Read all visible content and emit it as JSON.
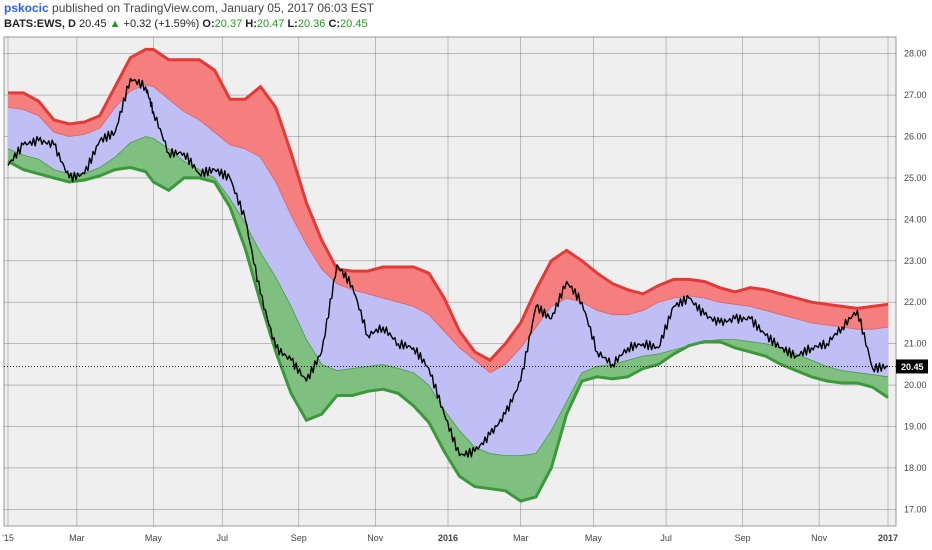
{
  "header": {
    "author": "pskocic",
    "published_text": "published on TradingView.com, January 05, 2017 06:03 EST",
    "symbol": "BATS:EWS, D",
    "last": "20.45",
    "up_arrow": "▲",
    "change": "+0.32 (+1.59%)",
    "o_label": "O:",
    "o_value": "20.37",
    "h_label": "H:",
    "h_value": "20.47",
    "l_label": "L:",
    "l_value": "20.36",
    "c_label": "C:",
    "c_value": "20.45"
  },
  "colors": {
    "background": "#efefef",
    "grid": "#555555",
    "upper_band": "#f57f7f",
    "upper_edge": "#e53935",
    "middle_band": "#bfbff5",
    "lower_band": "#7fbf7f",
    "lower_edge": "#3a9a3a",
    "price": "#000000",
    "price_tag": "#000000"
  },
  "chart_data": {
    "type": "line",
    "title": "",
    "xlabel": "",
    "ylabel": "",
    "ylim": [
      16.6,
      28.4
    ],
    "y_ticks": [
      "17.00",
      "18.00",
      "19.00",
      "20.00",
      "21.00",
      "22.00",
      "23.00",
      "24.00",
      "25.00",
      "26.00",
      "27.00",
      "28.00"
    ],
    "x_ticks": [
      "'15",
      "Mar",
      "May",
      "Jul",
      "Sep",
      "Nov",
      "2016",
      "Mar",
      "May",
      "Jul",
      "Sep",
      "Nov",
      "2017"
    ],
    "x_tick_pos": [
      0,
      1.8,
      3.8,
      5.6,
      7.6,
      9.6,
      11.5,
      13.4,
      15.3,
      17.2,
      19.2,
      21.2,
      23.0
    ],
    "last_price_label": "20.45",
    "x_months": [
      0,
      0.4,
      0.8,
      1.2,
      1.6,
      2.0,
      2.4,
      2.8,
      3.2,
      3.6,
      3.8,
      4.2,
      4.6,
      5.0,
      5.4,
      5.8,
      6.2,
      6.6,
      7.0,
      7.4,
      7.8,
      8.2,
      8.6,
      9.0,
      9.4,
      9.8,
      10.2,
      10.6,
      11.0,
      11.4,
      11.8,
      12.2,
      12.6,
      13.0,
      13.4,
      13.8,
      14.2,
      14.6,
      15.0,
      15.4,
      15.8,
      16.2,
      16.6,
      17.0,
      17.4,
      17.8,
      18.2,
      18.6,
      19.0,
      19.4,
      19.8,
      20.2,
      20.6,
      21.0,
      21.4,
      21.8,
      22.2,
      22.6,
      23.0
    ],
    "series": [
      {
        "name": "",
        "role": "upper_outer",
        "values": [
          27.05,
          27.05,
          26.85,
          26.4,
          26.3,
          26.35,
          26.5,
          27.2,
          27.9,
          28.1,
          28.1,
          27.85,
          27.85,
          27.85,
          27.6,
          26.9,
          26.9,
          27.2,
          26.7,
          25.6,
          24.4,
          23.5,
          22.8,
          22.75,
          22.75,
          22.85,
          22.85,
          22.85,
          22.7,
          22.1,
          21.3,
          20.8,
          20.6,
          21.0,
          21.5,
          22.3,
          23.0,
          23.25,
          23.0,
          22.7,
          22.45,
          22.3,
          22.2,
          22.4,
          22.55,
          22.55,
          22.5,
          22.35,
          22.25,
          22.35,
          22.3,
          22.2,
          22.1,
          22.0,
          21.95,
          21.9,
          21.85,
          21.9,
          21.95
        ]
      },
      {
        "name": "",
        "role": "upper_inner",
        "values": [
          26.7,
          26.65,
          26.5,
          26.1,
          26.0,
          26.05,
          26.2,
          26.7,
          27.1,
          27.25,
          27.2,
          26.9,
          26.6,
          26.4,
          26.1,
          25.8,
          25.7,
          25.5,
          24.9,
          24.1,
          23.4,
          22.8,
          22.45,
          22.3,
          22.2,
          22.1,
          22.0,
          21.9,
          21.7,
          21.3,
          20.9,
          20.6,
          20.3,
          20.5,
          20.9,
          21.4,
          21.9,
          22.1,
          22.0,
          21.8,
          21.7,
          21.7,
          21.8,
          22.0,
          22.1,
          22.15,
          22.1,
          22.0,
          21.95,
          21.9,
          21.8,
          21.7,
          21.6,
          21.5,
          21.45,
          21.4,
          21.35,
          21.35,
          21.4
        ]
      },
      {
        "name": "",
        "role": "lower_inner",
        "values": [
          25.7,
          25.55,
          25.45,
          25.2,
          25.1,
          25.1,
          25.25,
          25.5,
          25.85,
          26.0,
          25.95,
          25.7,
          25.4,
          25.2,
          25.0,
          24.5,
          23.9,
          23.2,
          22.6,
          21.9,
          21.1,
          20.5,
          20.35,
          20.4,
          20.45,
          20.5,
          20.4,
          20.3,
          20.0,
          19.4,
          18.9,
          18.5,
          18.35,
          18.3,
          18.3,
          18.35,
          18.9,
          19.6,
          20.3,
          20.45,
          20.5,
          20.6,
          20.7,
          20.75,
          20.85,
          20.95,
          21.05,
          21.1,
          21.1,
          21.05,
          21.0,
          20.9,
          20.75,
          20.6,
          20.45,
          20.35,
          20.3,
          20.25,
          20.2
        ]
      },
      {
        "name": "",
        "role": "lower_outer",
        "values": [
          25.4,
          25.2,
          25.1,
          25.0,
          24.9,
          24.95,
          25.05,
          25.2,
          25.25,
          25.15,
          24.9,
          24.7,
          25.0,
          25.0,
          24.9,
          24.3,
          23.3,
          22.0,
          20.8,
          19.8,
          19.15,
          19.3,
          19.75,
          19.75,
          19.85,
          19.9,
          19.8,
          19.5,
          19.1,
          18.4,
          17.8,
          17.55,
          17.5,
          17.45,
          17.2,
          17.3,
          18.0,
          19.3,
          20.1,
          20.2,
          20.15,
          20.2,
          20.4,
          20.5,
          20.75,
          20.95,
          21.05,
          21.05,
          20.9,
          20.8,
          20.7,
          20.5,
          20.35,
          20.2,
          20.1,
          20.05,
          20.05,
          19.95,
          19.7
        ]
      },
      {
        "name": "",
        "role": "price",
        "values": [
          25.3,
          25.8,
          25.9,
          25.8,
          25.0,
          25.1,
          25.9,
          26.1,
          27.4,
          27.2,
          26.6,
          25.6,
          25.6,
          25.1,
          25.2,
          25.0,
          24.0,
          22.2,
          20.9,
          20.6,
          20.1,
          20.8,
          22.9,
          22.4,
          21.2,
          21.4,
          21.0,
          20.9,
          20.4,
          19.3,
          18.3,
          18.4,
          18.8,
          19.3,
          20.1,
          21.9,
          21.6,
          22.5,
          22.0,
          20.8,
          20.5,
          20.9,
          21.0,
          20.9,
          21.9,
          22.1,
          21.7,
          21.5,
          21.6,
          21.6,
          21.2,
          20.9,
          20.7,
          20.9,
          21.0,
          21.4,
          21.8,
          20.4,
          20.45
        ]
      }
    ]
  }
}
